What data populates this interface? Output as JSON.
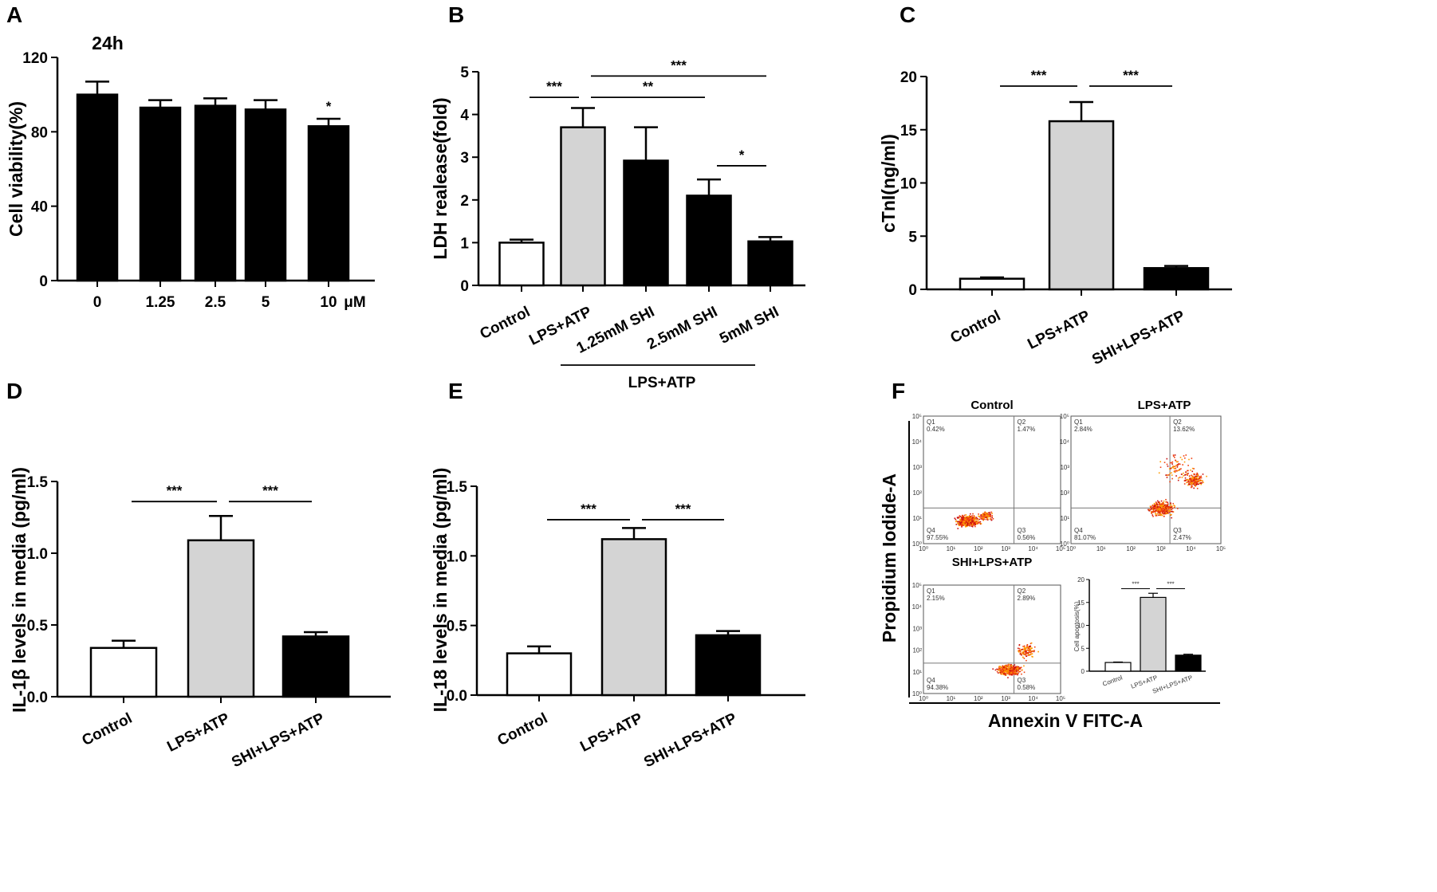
{
  "chart_data": [
    {
      "id": "A",
      "type": "bar",
      "panel_label": "A",
      "annotation": "24h",
      "ylabel": "Cell viability(%)",
      "xlabel": "",
      "unit_label": "μM",
      "ylim": [
        0,
        120
      ],
      "yticks": [
        "0",
        "40",
        "80",
        "120"
      ],
      "categories": [
        "0",
        "1.25",
        "2.5",
        "5",
        "10"
      ],
      "values": [
        100,
        93,
        94,
        92,
        83
      ],
      "errors": [
        7,
        4,
        4,
        5,
        4
      ],
      "fills": [
        "#000000",
        "#000000",
        "#000000",
        "#000000",
        "#000000"
      ],
      "sig": [
        {
          "bar": 4,
          "label": "*"
        }
      ],
      "brackets": []
    },
    {
      "id": "B",
      "type": "bar",
      "panel_label": "B",
      "ylabel": "LDH realease(fold)",
      "xlabel": "",
      "ylim": [
        0,
        5
      ],
      "yticks": [
        "0",
        "1",
        "2",
        "3",
        "4",
        "5"
      ],
      "categories": [
        "Control",
        "LPS+ATP",
        "1.25mM SHI",
        "2.5mM  SHI",
        "5mM SHI"
      ],
      "values": [
        1.0,
        3.7,
        2.92,
        2.1,
        1.03
      ],
      "errors": [
        0.07,
        0.45,
        0.78,
        0.38,
        0.1
      ],
      "fills": [
        "#ffffff",
        "#d4d4d4",
        "#000000",
        "#000000",
        "#000000"
      ],
      "group_label": "LPS+ATP",
      "brackets": [
        {
          "from": 0,
          "to": 1,
          "level": 4.4,
          "label": "***"
        },
        {
          "from": 1,
          "to": 4,
          "level": 4.9,
          "label": "***"
        },
        {
          "from": 1,
          "to": 3,
          "level": 4.4,
          "label": "**"
        },
        {
          "from": 3,
          "to": 4,
          "level": 2.8,
          "label": "*"
        }
      ]
    },
    {
      "id": "C",
      "type": "bar",
      "panel_label": "C",
      "ylabel": "cTnI(ng/ml)",
      "xlabel": "",
      "ylim": [
        0,
        20
      ],
      "yticks": [
        "0",
        "5",
        "10",
        "15",
        "20"
      ],
      "categories": [
        "Control",
        "LPS+ATP",
        "SHI+LPS+ATP"
      ],
      "values": [
        1.0,
        15.8,
        2.0
      ],
      "errors": [
        0.12,
        1.8,
        0.2
      ],
      "fills": [
        "#ffffff",
        "#d4d4d4",
        "#000000"
      ],
      "brackets": [
        {
          "from": 0,
          "to": 1,
          "level": 19.1,
          "label": "***"
        },
        {
          "from": 1,
          "to": 2,
          "level": 19.1,
          "label": "***"
        }
      ]
    },
    {
      "id": "D",
      "type": "bar",
      "panel_label": "D",
      "ylabel": "IL-1β levels in media (pg/ml)",
      "xlabel": "",
      "ylim": [
        0,
        1.5
      ],
      "yticks": [
        "0.0",
        "0.5",
        "1.0",
        "1.5"
      ],
      "categories": [
        "Control",
        "LPS+ATP",
        "SHI+LPS+ATP"
      ],
      "values": [
        0.34,
        1.09,
        0.42
      ],
      "errors": [
        0.05,
        0.17,
        0.03
      ],
      "fills": [
        "#ffffff",
        "#d4d4d4",
        "#000000"
      ],
      "brackets": [
        {
          "from": 0,
          "to": 1,
          "level": 1.36,
          "label": "***"
        },
        {
          "from": 1,
          "to": 2,
          "level": 1.36,
          "label": "***"
        }
      ]
    },
    {
      "id": "E",
      "type": "bar",
      "panel_label": "E",
      "ylabel": "IL-18 levels in media (pg/ml)",
      "xlabel": "",
      "ylim": [
        0,
        1.5
      ],
      "yticks": [
        "0.0",
        "0.5",
        "1.0",
        "1.5"
      ],
      "categories": [
        "Control",
        "LPS+ATP",
        "SHI+LPS+ATP"
      ],
      "values": [
        0.3,
        1.12,
        0.43
      ],
      "errors": [
        0.05,
        0.08,
        0.03
      ],
      "fills": [
        "#ffffff",
        "#d4d4d4",
        "#000000"
      ],
      "brackets": [
        {
          "from": 0,
          "to": 1,
          "level": 1.26,
          "label": "***"
        },
        {
          "from": 1,
          "to": 2,
          "level": 1.26,
          "label": "***"
        }
      ]
    },
    {
      "id": "F",
      "type": "scatter",
      "panel_label": "F",
      "xlabel": "Annexin V FITC-A",
      "ylabel": "Propidium Iodide-A",
      "axis_exponents": [
        "10⁰",
        "10¹",
        "10²",
        "10³",
        "10⁴",
        "10⁵"
      ],
      "plots": [
        {
          "title": "Control",
          "quadrants": {
            "Q1": "0.42%",
            "Q2": "1.47%",
            "Q3": "0.56%",
            "Q4": "97.55%"
          }
        },
        {
          "title": "LPS+ATP",
          "quadrants": {
            "Q1": "2.84%",
            "Q2": "13.62%",
            "Q3": "2.47%",
            "Q4": "81.07%"
          }
        },
        {
          "title": "SHI+LPS+ATP",
          "quadrants": {
            "Q1": "2.15%",
            "Q2": "2.89%",
            "Q3": "0.58%",
            "Q4": "94.38%"
          }
        }
      ],
      "inset": {
        "type": "bar",
        "ylabel": "Cell apoptosis(%)",
        "ylim": [
          0,
          20
        ],
        "yticks": [
          "0",
          "5",
          "10",
          "15",
          "20"
        ],
        "categories": [
          "Control",
          "LPS+ATP",
          "SHI+LPS+ATP"
        ],
        "values": [
          1.9,
          16.1,
          3.5
        ],
        "errors": [
          0.1,
          0.9,
          0.2
        ],
        "fills": [
          "#ffffff",
          "#d4d4d4",
          "#000000"
        ],
        "brackets": [
          {
            "from": 0,
            "to": 1,
            "level": 18,
            "label": "***"
          },
          {
            "from": 1,
            "to": 2,
            "level": 18,
            "label": "***"
          }
        ]
      }
    }
  ]
}
